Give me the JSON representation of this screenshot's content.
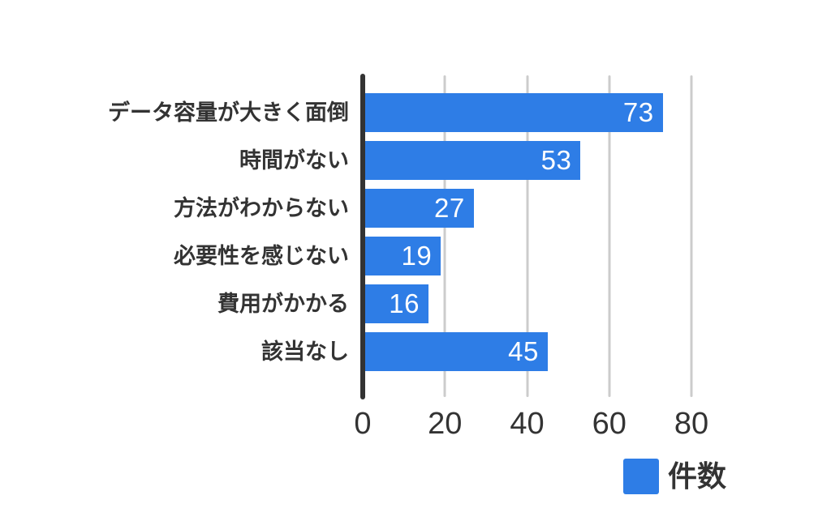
{
  "chart_data": {
    "type": "bar",
    "orientation": "horizontal",
    "title": "",
    "categories": [
      "データ容量が大きく面倒",
      "時間がない",
      "方法がわからない",
      "必要性を感じない",
      "費用がかかる",
      "該当なし"
    ],
    "values": [
      73,
      53,
      27,
      19,
      16,
      45
    ],
    "series_name": "件数",
    "value_labels_shown": true,
    "x_ticks": [
      0,
      20,
      40,
      60,
      80
    ],
    "xlim": [
      0,
      80
    ],
    "xlabel": "",
    "ylabel": "",
    "grid": true,
    "legend_position": "bottom-right",
    "colors": {
      "bar": "#2e7de6",
      "axis": "#333333",
      "gridline": "#cccccc",
      "text": "#333333",
      "value_text": "#ffffff",
      "background": "#ffffff"
    }
  }
}
